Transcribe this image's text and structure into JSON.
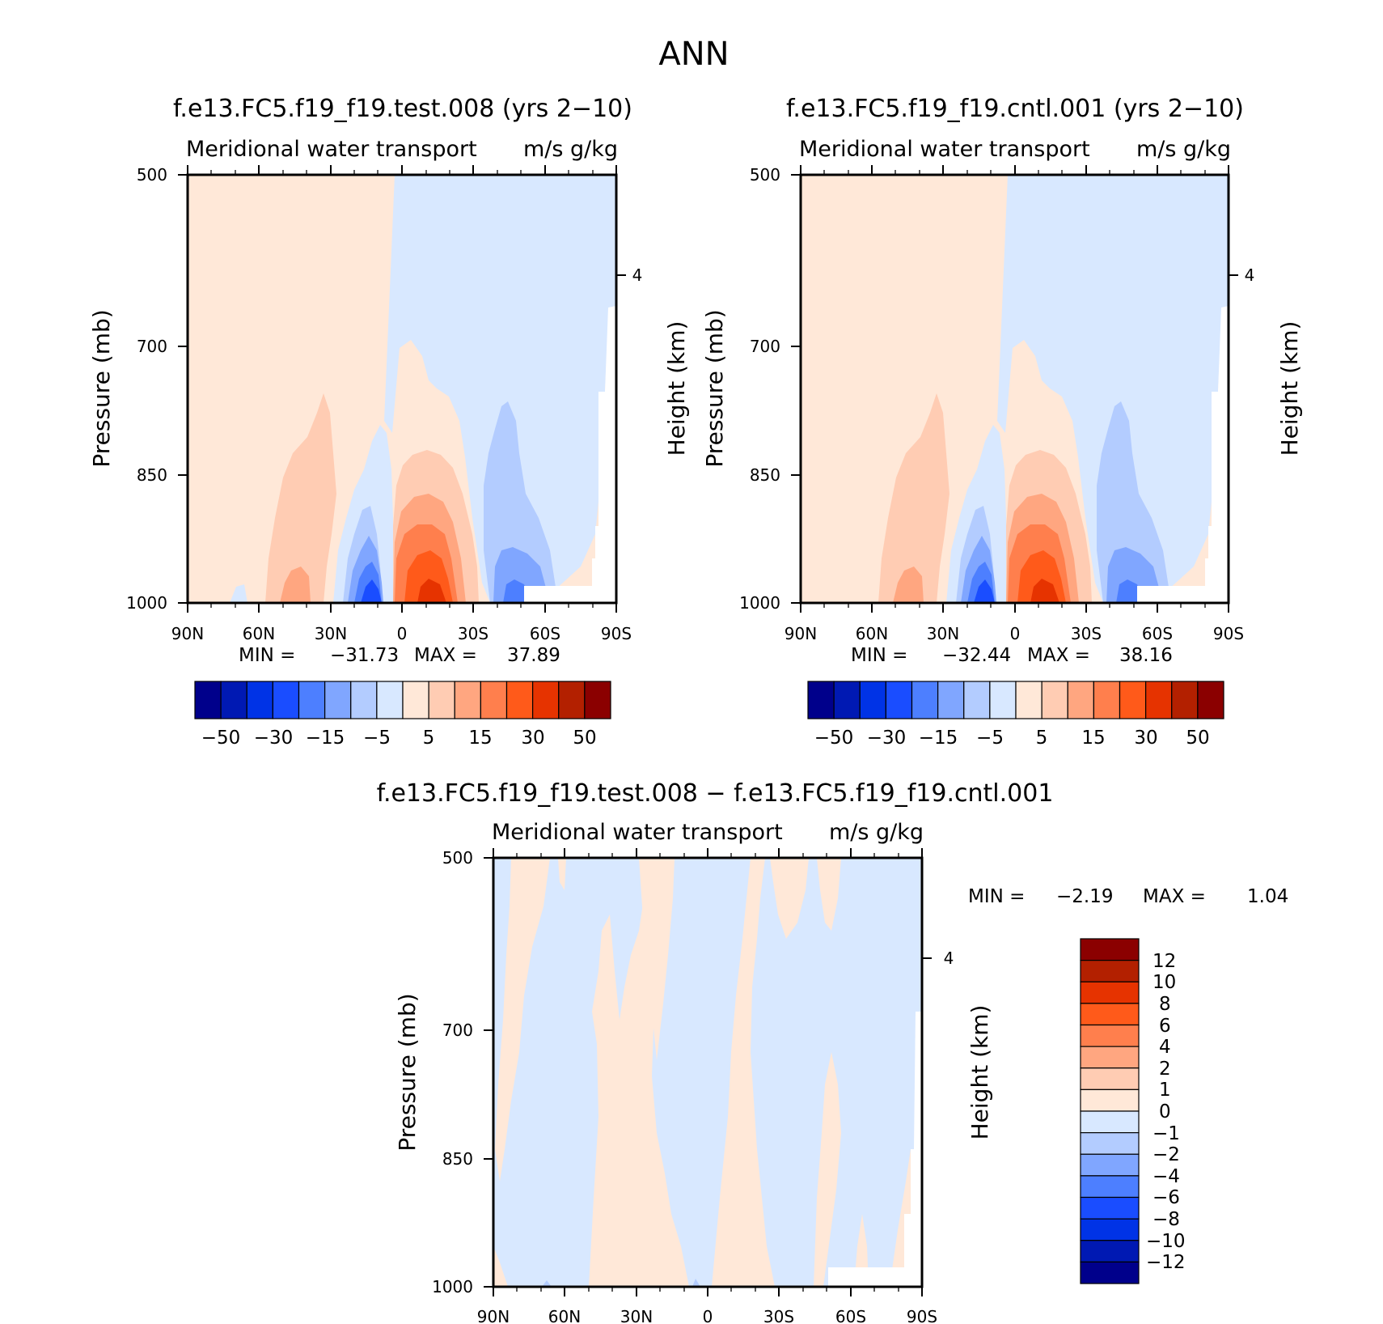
{
  "figure_title": "ANN",
  "colors": {
    "test_cntl_scale": [
      "#00008b",
      "#0019b3",
      "#0033e6",
      "#1a4dff",
      "#4d7fff",
      "#80a6ff",
      "#b3ccff",
      "#d8e8ff",
      "#ffe8d8",
      "#ffccb3",
      "#ffa680",
      "#ff7f4d",
      "#ff5a1a",
      "#e63300",
      "#b32000",
      "#8b0000"
    ],
    "diff_scale": [
      "#00008b",
      "#0019b3",
      "#0033e6",
      "#1a4dff",
      "#4d7fff",
      "#80a6ff",
      "#b3ccff",
      "#d8e8ff",
      "#ffe8d8",
      "#ffccb3",
      "#ffa680",
      "#ff7f4d",
      "#ff5a1a",
      "#e63300",
      "#b32000",
      "#8b0000"
    ]
  },
  "chart_data": [
    {
      "type": "heatmap",
      "title": "f.e13.FC5.f19_f19.test.008 (yrs 2−10)",
      "subtitle_left": "Meridional water transport",
      "subtitle_right": "m/s g/kg",
      "ylabel": "Pressure (mb)",
      "ylabel_right": "Height (km)",
      "x_ticks": [
        "90N",
        "60N",
        "30N",
        "0",
        "30S",
        "60S",
        "90S"
      ],
      "y_ticks": [
        "500",
        "700",
        "850",
        "1000"
      ],
      "y_right_ticks": [
        "4"
      ],
      "stats": {
        "min_label": "MIN =",
        "min": "−31.73",
        "max_label": "MAX =",
        "max": "37.89"
      },
      "colorbar_labels": [
        "−50",
        "−30",
        "−15",
        "−5",
        "5",
        "15",
        "30",
        "50"
      ],
      "colorbar_orientation": "horizontal",
      "min_value": -31.73,
      "max_value": 37.89
    },
    {
      "type": "heatmap",
      "title": "f.e13.FC5.f19_f19.cntl.001 (yrs 2−10)",
      "subtitle_left": "Meridional water transport",
      "subtitle_right": "m/s g/kg",
      "ylabel": "Pressure (mb)",
      "ylabel_right": "Height (km)",
      "x_ticks": [
        "90N",
        "60N",
        "30N",
        "0",
        "30S",
        "60S",
        "90S"
      ],
      "y_ticks": [
        "500",
        "700",
        "850",
        "1000"
      ],
      "y_right_ticks": [
        "4"
      ],
      "stats": {
        "min_label": "MIN =",
        "min": "−32.44",
        "max_label": "MAX =",
        "max": "38.16"
      },
      "colorbar_labels": [
        "−50",
        "−30",
        "−15",
        "−5",
        "5",
        "15",
        "30",
        "50"
      ],
      "colorbar_orientation": "horizontal",
      "min_value": -32.44,
      "max_value": 38.16
    },
    {
      "type": "heatmap",
      "title": "f.e13.FC5.f19_f19.test.008 − f.e13.FC5.f19_f19.cntl.001",
      "subtitle_left": "Meridional water transport",
      "subtitle_right": "m/s g/kg",
      "ylabel": "Pressure (mb)",
      "ylabel_right": "Height (km)",
      "x_ticks": [
        "90N",
        "60N",
        "30N",
        "0",
        "30S",
        "60S",
        "90S"
      ],
      "y_ticks": [
        "500",
        "700",
        "850",
        "1000"
      ],
      "y_right_ticks": [
        "4"
      ],
      "stats": {
        "min_label": "MIN =",
        "min": "−2.19",
        "max_label": "MAX =",
        "max": "1.04"
      },
      "colorbar_labels": [
        "12",
        "10",
        "8",
        "6",
        "4",
        "2",
        "1",
        "0",
        "−1",
        "−2",
        "−4",
        "−6",
        "−8",
        "−10",
        "−12"
      ],
      "colorbar_orientation": "vertical",
      "min_value": -2.19,
      "max_value": 1.04
    }
  ]
}
